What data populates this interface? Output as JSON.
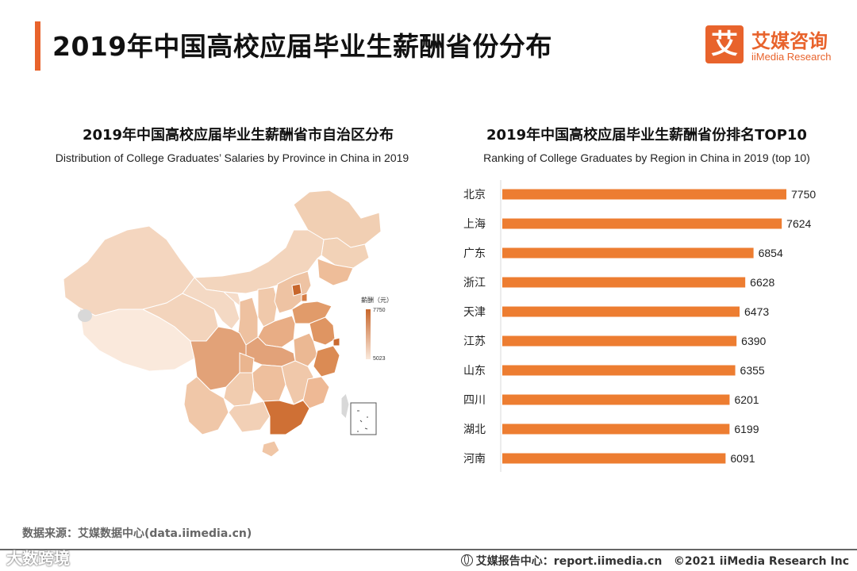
{
  "header": {
    "title": "2019年中国高校应届毕业生薪酬省份分布"
  },
  "brand": {
    "mark": "艾",
    "name_cn": "艾媒咨询",
    "name_en": "iiMedia Research"
  },
  "colors": {
    "accent": "#e8632c",
    "bar": "#ed7d31",
    "map_low": "#fae9dc",
    "map_high": "#c8672c"
  },
  "map_panel": {
    "title": "2019年中国高校应届毕业生薪酬省市自治区分布",
    "subtitle": "Distribution of College Graduates’   Salaries by Province in China in 2019",
    "legend_title": "薪酬（元）",
    "legend_max": "7750",
    "legend_min": "5023"
  },
  "bar_panel": {
    "title": "2019年中国高校应届毕业生薪酬省份排名TOP10",
    "subtitle": "Ranking of College Graduates by Region in China in 2019 (top 10)"
  },
  "chart_data": [
    {
      "type": "bar",
      "orientation": "horizontal",
      "title": "2019年中国高校应届毕业生薪酬省份排名TOP10",
      "subtitle": "Ranking of College Graduates by Region in China in 2019 (top 10)",
      "categories": [
        "北京",
        "上海",
        "广东",
        "浙江",
        "天津",
        "江苏",
        "山东",
        "四川",
        "湖北",
        "河南"
      ],
      "values": [
        7750,
        7624,
        6854,
        6628,
        6473,
        6390,
        6355,
        6201,
        6199,
        6091
      ],
      "xlim": [
        0,
        7750
      ]
    },
    {
      "type": "heatmap",
      "title": "2019年中国高校应届毕业生薪酬省市自治区分布",
      "subtitle": "Distribution of College Graduates’   Salaries by Province in China in 2019",
      "legend_title": "薪酬（元）",
      "range": [
        5023,
        7750
      ]
    }
  ],
  "footer": {
    "source": "数据来源：艾媒数据中心(data.iimedia.cn)",
    "report": "艾媒报告中心：report.iimedia.cn",
    "copyright": "©2021  iiMedia Research  Inc",
    "watermark": "大数跨境"
  }
}
